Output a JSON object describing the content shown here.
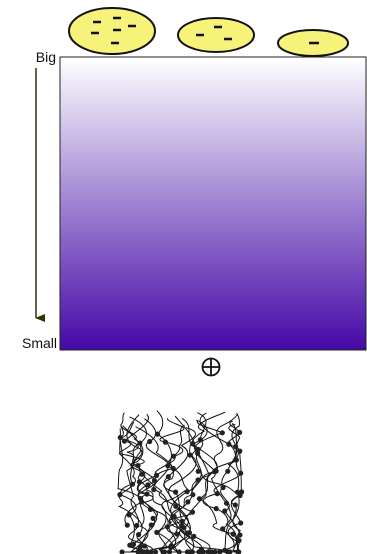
{
  "labels": {
    "top": "Big",
    "bottom": "Small"
  }
}
